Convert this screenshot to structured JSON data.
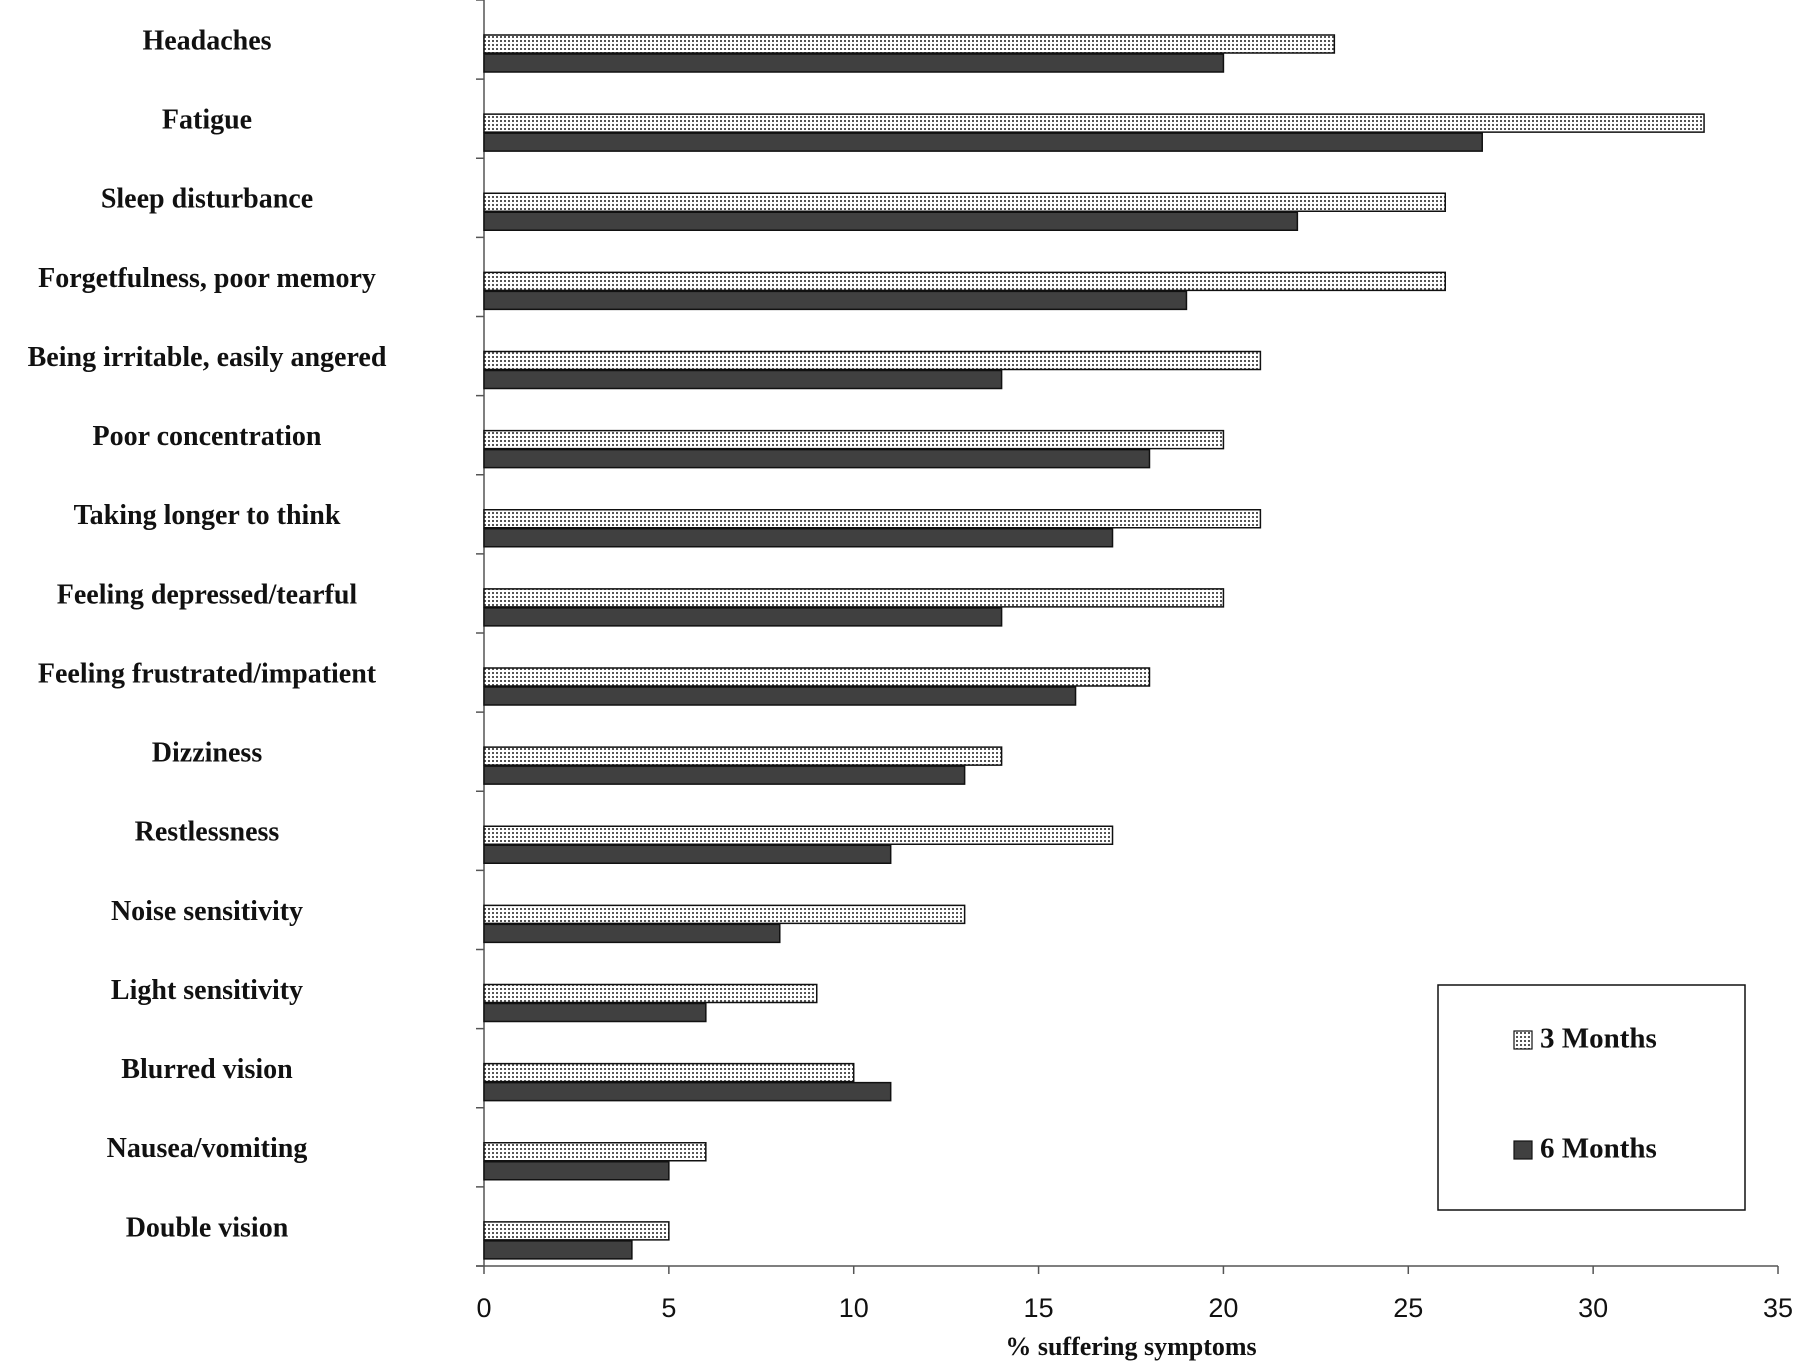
{
  "chart_data": {
    "type": "bar",
    "orientation": "horizontal",
    "categories": [
      "Headaches",
      "Fatigue",
      "Sleep disturbance",
      "Forgetfulness, poor memory",
      "Being irritable, easily angered",
      "Poor concentration",
      "Taking longer to think",
      "Feeling depressed/tearful",
      "Feeling frustrated/impatient",
      "Dizziness",
      "Restlessness",
      "Noise sensitivity",
      "Light sensitivity",
      "Blurred vision",
      "Nausea/vomiting",
      "Double vision"
    ],
    "series": [
      {
        "name": "3 Months",
        "color": "#d8d8d8",
        "values": [
          23,
          33,
          26,
          26,
          21,
          20,
          21,
          20,
          18,
          14,
          17,
          13,
          9,
          10,
          6,
          5
        ]
      },
      {
        "name": "6 Months",
        "color": "#404040",
        "values": [
          20,
          27,
          22,
          19,
          14,
          18,
          17,
          14,
          16,
          13,
          11,
          8,
          6,
          11,
          5,
          4
        ]
      }
    ],
    "xlabel": "% suffering symptoms",
    "xlim": [
      0,
      35
    ],
    "xticks": [
      0,
      5,
      10,
      15,
      20,
      25,
      30,
      35
    ],
    "grid": false,
    "legend": "lower right"
  }
}
